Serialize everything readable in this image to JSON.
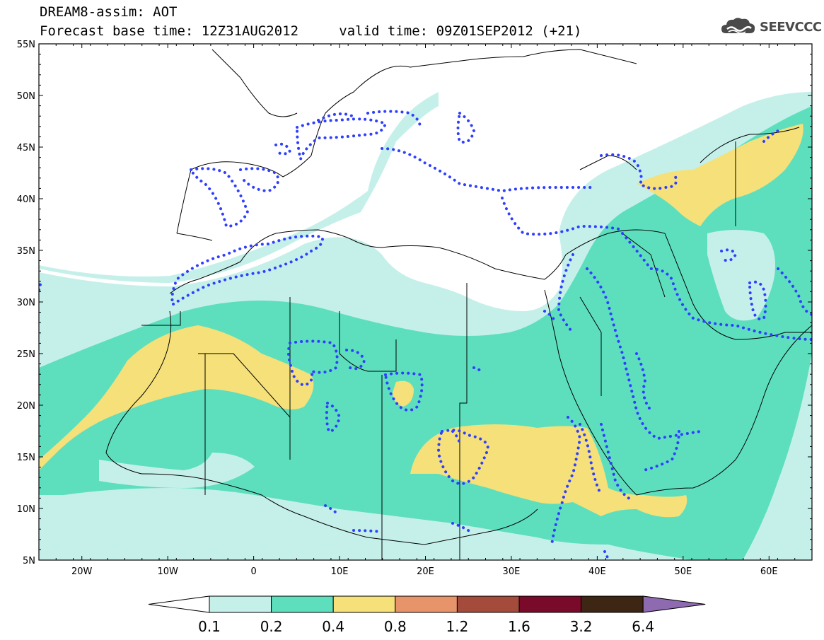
{
  "header": {
    "title": "DREAM8-assim: AOT",
    "base_time_label": "Forecast base time:",
    "base_time": "12Z31AUG2012",
    "valid_time_label": "valid time:",
    "valid_time": "09Z01SEP2012 (+21)"
  },
  "logo": {
    "text": "SEEVCCC",
    "icon": "cloud-icon"
  },
  "map": {
    "lat_labels": [
      "55N",
      "50N",
      "45N",
      "40N",
      "35N",
      "30N",
      "25N",
      "20N",
      "15N",
      "10N",
      "5N"
    ],
    "lon_labels": [
      "20W",
      "10W",
      "0",
      "10E",
      "20E",
      "30E",
      "40E",
      "50E",
      "60E"
    ],
    "lat_range": [
      5,
      55
    ],
    "lon_range": [
      -25,
      65
    ],
    "colors": {
      "background": "#ffffff",
      "level_0_1": "#c5f0ea",
      "level_0_2": "#5ddfbe",
      "level_0_4": "#f5e07a",
      "dotted_contour": "#2f3fff",
      "border": "#000000"
    }
  },
  "colorbar": {
    "labels": [
      "0.1",
      "0.2",
      "0.4",
      "0.8",
      "1.2",
      "1.6",
      "3.2",
      "6.4"
    ],
    "colors": [
      "#c5f0ea",
      "#5ddfbe",
      "#f5e07a",
      "#e8946b",
      "#a54b3c",
      "#7a0a2a",
      "#3d2613",
      "#8e6bb0"
    ]
  }
}
